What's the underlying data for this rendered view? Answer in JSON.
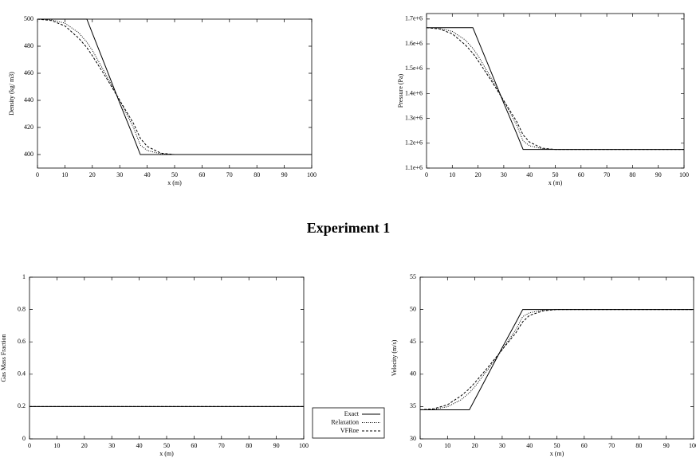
{
  "caption": "Experiment 1",
  "chart_data": [
    {
      "type": "line",
      "xlabel": "x (m)",
      "ylabel": "Density (kg/ m3)",
      "x": [
        0,
        5,
        10,
        15,
        18,
        20,
        25,
        30,
        35,
        37.5,
        40,
        45,
        50,
        100
      ],
      "xlim": [
        0,
        100
      ],
      "xticks": [
        0,
        10,
        20,
        30,
        40,
        50,
        60,
        70,
        80,
        90,
        100
      ],
      "ylim": [
        390,
        500
      ],
      "yticks": [
        400,
        420,
        440,
        460,
        480,
        500
      ],
      "series": [
        {
          "name": "Exact",
          "color": "#000000",
          "dash": "solid",
          "values": [
            500,
            500,
            500,
            500,
            500,
            489.7,
            464,
            438,
            413,
            400,
            400,
            400,
            400,
            400
          ]
        },
        {
          "name": "Relaxation",
          "color": "#000000",
          "dash": "dotted",
          "values": [
            500,
            499.5,
            497,
            490,
            483,
            477,
            459,
            440,
            420,
            407,
            403,
            400.5,
            400,
            400
          ]
        },
        {
          "name": "VFRoe",
          "color": "#000000",
          "dash": "dashed",
          "values": [
            500,
            499,
            495,
            486,
            479,
            473,
            457,
            440,
            423,
            412,
            406,
            401,
            400,
            400
          ]
        }
      ]
    },
    {
      "type": "line",
      "xlabel": "x (m)",
      "ylabel": "Pressure (Pa)",
      "x": [
        0,
        5,
        10,
        15,
        18,
        20,
        25,
        30,
        35,
        37.5,
        40,
        45,
        50,
        100
      ],
      "xlim": [
        0,
        100
      ],
      "xticks": [
        0,
        10,
        20,
        30,
        40,
        50,
        60,
        70,
        80,
        90,
        100
      ],
      "ylim": [
        1100000,
        1722000
      ],
      "yticks": [
        {
          "value": 1100000,
          "label": "1.1e+6"
        },
        {
          "value": 1200000,
          "label": "1.2e+6"
        },
        {
          "value": 1300000,
          "label": "1.3e+6"
        },
        {
          "value": 1400000,
          "label": "1.4e+6"
        },
        {
          "value": 1500000,
          "label": "1.5e+6"
        },
        {
          "value": 1600000,
          "label": "1.6e+6"
        },
        {
          "value": 1700000,
          "label": "1.7e+6"
        }
      ],
      "series": [
        {
          "name": "Exact",
          "color": "#000000",
          "dash": "solid",
          "values": [
            1665000,
            1665000,
            1665000,
            1665000,
            1665000,
            1614500,
            1488600,
            1361200,
            1238700,
            1175000,
            1175000,
            1175000,
            1175000,
            1175000
          ]
        },
        {
          "name": "Relaxation",
          "color": "#000000",
          "dash": "dotted",
          "values": [
            1665000,
            1662550,
            1650300,
            1616000,
            1581700,
            1552300,
            1464100,
            1371000,
            1273000,
            1209300,
            1189700,
            1177450,
            1175000,
            1175000
          ]
        },
        {
          "name": "VFRoe",
          "color": "#000000",
          "dash": "dashed",
          "values": [
            1665000,
            1660100,
            1640500,
            1596400,
            1562100,
            1532700,
            1454300,
            1371000,
            1287700,
            1233800,
            1204400,
            1179900,
            1175000,
            1175000
          ]
        }
      ]
    },
    {
      "type": "line",
      "xlabel": "x (m)",
      "ylabel": "Gas Mass Fraction",
      "legend": "right",
      "x": [
        0,
        100
      ],
      "xlim": [
        0,
        100
      ],
      "xticks": [
        0,
        10,
        20,
        30,
        40,
        50,
        60,
        70,
        80,
        90,
        100
      ],
      "ylim": [
        0,
        1
      ],
      "yticks": [
        0,
        0.2,
        0.4,
        0.6,
        0.8,
        1
      ],
      "series": [
        {
          "name": "Exact",
          "color": "#000000",
          "dash": "solid",
          "values": [
            0.2,
            0.2
          ]
        },
        {
          "name": "Relaxation",
          "color": "#000000",
          "dash": "dotted",
          "values": [
            0.2,
            0.2
          ]
        },
        {
          "name": "VFRoe",
          "color": "#000000",
          "dash": "dashed",
          "values": [
            0.2,
            0.2
          ]
        }
      ]
    },
    {
      "type": "line",
      "xlabel": "x (m)",
      "ylabel": "Velocity (m/s)",
      "x": [
        0,
        5,
        10,
        15,
        18,
        20,
        25,
        30,
        35,
        37.5,
        40,
        45,
        50,
        100
      ],
      "xlim": [
        0,
        100
      ],
      "xticks": [
        0,
        10,
        20,
        30,
        40,
        50,
        60,
        70,
        80,
        90,
        100
      ],
      "ylim": [
        30,
        55
      ],
      "yticks": [
        30,
        35,
        40,
        45,
        50,
        55
      ],
      "series": [
        {
          "name": "Exact",
          "color": "#000000",
          "dash": "solid",
          "values": [
            34.5,
            34.5,
            34.5,
            34.5,
            34.5,
            36.1,
            40.1,
            44.1,
            48,
            50,
            50,
            50,
            50,
            50
          ]
        },
        {
          "name": "Relaxation",
          "color": "#000000",
          "dash": "dotted",
          "values": [
            34.5,
            34.58,
            34.97,
            36.05,
            37.14,
            38.07,
            40.86,
            43.8,
            46.9,
            48.9,
            49.5,
            49.9,
            50,
            50
          ]
        },
        {
          "name": "VFRoe",
          "color": "#000000",
          "dash": "dashed",
          "values": [
            34.5,
            34.66,
            35.28,
            36.67,
            37.76,
            38.69,
            41.17,
            43.8,
            46.4,
            48.1,
            49.1,
            49.8,
            50,
            50
          ]
        }
      ]
    }
  ]
}
